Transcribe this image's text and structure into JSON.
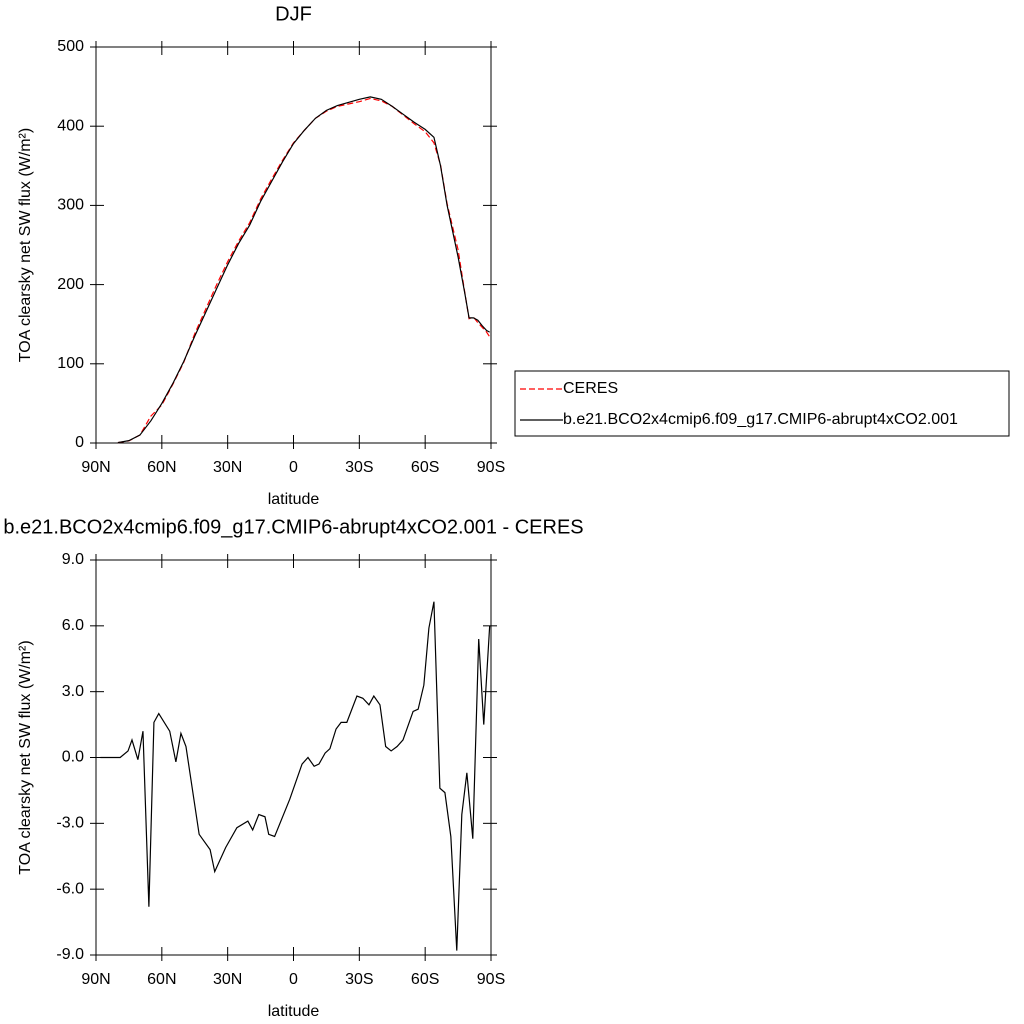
{
  "chart_data": [
    {
      "type": "line",
      "title": "DJF",
      "x_label": "latitude",
      "y_label": "TOA clearsky net SW flux (W/m²)",
      "xlim": [
        90,
        -90
      ],
      "xticks": [
        {
          "value": 90,
          "label": "90N"
        },
        {
          "value": 60,
          "label": "60N"
        },
        {
          "value": 30,
          "label": "30N"
        },
        0,
        {
          "value": -30,
          "label": "30S"
        },
        {
          "value": -60,
          "label": "60S"
        },
        {
          "value": -90,
          "label": "90S"
        }
      ],
      "ylim": [
        0,
        500
      ],
      "yticks": [
        0,
        100,
        200,
        300,
        400,
        500
      ],
      "legend": "right",
      "x": [
        80,
        75,
        70,
        65,
        60,
        55,
        50,
        45,
        40,
        35,
        30,
        25,
        20,
        15,
        10,
        5,
        0,
        -5,
        -10,
        -15,
        -20,
        -25,
        -30,
        -35,
        -40,
        -45,
        -50,
        -55,
        -60,
        -64,
        -67,
        -70,
        -75,
        -78,
        -80,
        -82,
        -84,
        -86,
        -88,
        -89.4
      ],
      "series": [
        {
          "name": "CERES",
          "color": "#ff0000",
          "dashed": true,
          "values": [
            0.5,
            2.7,
            10,
            34,
            48,
            74,
            102,
            138,
            169,
            200,
            229,
            255,
            278,
            308,
            333,
            357,
            379,
            395,
            410,
            419,
            425,
            428,
            431,
            435,
            432,
            425,
            414,
            403,
            393,
            379,
            351,
            302,
            244,
            191,
            157,
            159,
            152,
            146,
            140,
            134
          ]
        },
        {
          "name": "b.e21.BCO2x4cmip6.f09_g17.CMIP6-abrupt4xCO2.001",
          "color": "#000000",
          "dashed": false,
          "values": [
            0.5,
            3,
            10,
            28,
            50,
            75,
            103,
            135,
            165,
            195,
            225,
            252,
            275,
            305,
            330,
            355,
            378,
            395,
            410,
            420,
            426,
            430,
            434,
            437,
            434,
            425,
            415,
            405,
            396,
            386,
            350,
            300,
            235,
            190,
            158,
            158,
            155,
            148,
            142,
            140
          ]
        }
      ]
    },
    {
      "type": "line",
      "title": "b.e21.BCO2x4cmip6.f09_g17.CMIP6-abrupt4xCO2.001 - CERES",
      "x_label": "latitude",
      "y_label": "TOA clearsky net SW flux (W/m²)",
      "xlim": [
        90,
        -90
      ],
      "xticks": [
        {
          "value": 90,
          "label": "90N"
        },
        {
          "value": 60,
          "label": "60N"
        },
        {
          "value": 30,
          "label": "30N"
        },
        0,
        {
          "value": -30,
          "label": "30S"
        },
        {
          "value": -60,
          "label": "60S"
        },
        {
          "value": -90,
          "label": "90S"
        }
      ],
      "ylim": [
        -9,
        9
      ],
      "yticks": [
        {
          "value": -9,
          "label": "-9.0"
        },
        {
          "value": -6,
          "label": "-6.0"
        },
        {
          "value": -3,
          "label": "-3.0"
        },
        {
          "value": 0,
          "label": "0.0"
        },
        {
          "value": 3,
          "label": "3.0"
        },
        {
          "value": 6,
          "label": "6.0"
        },
        {
          "value": 9,
          "label": "9.0"
        }
      ],
      "x": [
        88,
        79,
        75.4,
        73.6,
        70.9,
        68.6,
        65.9,
        63.6,
        61.4,
        56.4,
        53.6,
        51.3,
        49,
        43,
        38,
        35.9,
        30.9,
        25.8,
        20.8,
        18.6,
        15.8,
        13,
        11.3,
        8.6,
        1.7,
        -3.9,
        -6.6,
        -9.4,
        -11.6,
        -14.4,
        -16.6,
        -19.4,
        -21.7,
        -24.3,
        -28.9,
        -31.6,
        -34.4,
        -36.6,
        -39.4,
        -42,
        -44.5,
        -47.2,
        -49.9,
        -54.5,
        -56.8,
        -59.4,
        -61.7,
        -64,
        -66.7,
        -69,
        -71.7,
        -74.4,
        -76.7,
        -79,
        -81.7,
        -84.4,
        -86.7,
        -89.4
      ],
      "series": [
        {
          "color": "#000000",
          "dashed": false,
          "values": [
            0,
            0,
            0.3,
            0.8,
            -0.1,
            1.2,
            -6.8,
            1.6,
            2.0,
            1.2,
            -0.2,
            1.1,
            0.5,
            -3.5,
            -4.2,
            -5.2,
            -4.1,
            -3.2,
            -2.9,
            -3.3,
            -2.6,
            -2.7,
            -3.5,
            -3.6,
            -1.9,
            -0.3,
            0.0,
            -0.4,
            -0.3,
            0.2,
            0.4,
            1.3,
            1.6,
            1.6,
            2.8,
            2.7,
            2.4,
            2.8,
            2.4,
            0.5,
            0.3,
            0.5,
            0.8,
            2.1,
            2.2,
            3.3,
            5.9,
            7.1,
            -1.4,
            -1.6,
            -3.6,
            -8.8,
            -2.6,
            -0.7,
            -3.7,
            5.4,
            1.5,
            6.0
          ]
        }
      ]
    }
  ]
}
